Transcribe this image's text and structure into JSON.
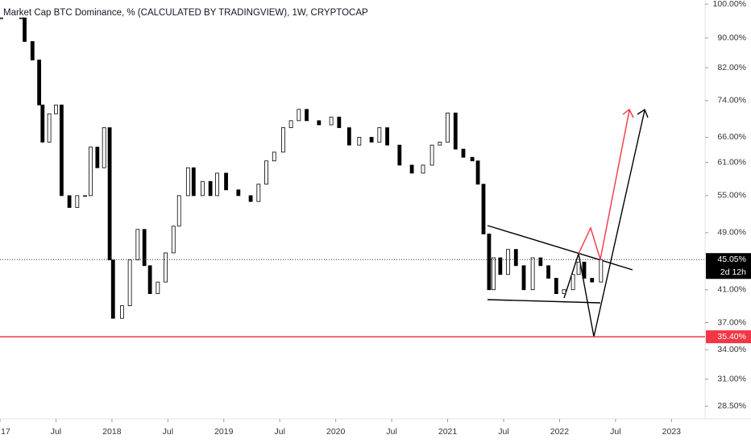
{
  "chart_data": {
    "type": "candlestick",
    "title": "Market Cap BTC Dominance, % (CALCULATED BY TRADINGVIEW), 1W, CRYPTOCAP",
    "log_scale": true,
    "grid": false,
    "up_color": "#ffffff",
    "down_color": "#000000",
    "x": [
      2017.01,
      2017.19,
      2017.22,
      2017.29,
      2017.35,
      2017.38,
      2017.44,
      2017.5,
      2017.55,
      2017.62,
      2017.69,
      2017.76,
      2017.81,
      2017.87,
      2017.93,
      2017.98,
      2018.01,
      2018.09,
      2018.16,
      2018.23,
      2018.29,
      2018.34,
      2018.41,
      2018.48,
      2018.55,
      2018.6,
      2018.68,
      2018.73,
      2018.81,
      2018.88,
      2018.94,
      2019.02,
      2019.13,
      2019.24,
      2019.31,
      2019.38,
      2019.45,
      2019.53,
      2019.6,
      2019.67,
      2019.74,
      2019.85,
      2019.96,
      2020.03,
      2020.12,
      2020.21,
      2020.32,
      2020.39,
      2020.46,
      2020.57,
      2020.68,
      2020.78,
      2020.86,
      2020.93,
      2021.0,
      2021.07,
      2021.14,
      2021.22,
      2021.27,
      2021.32,
      2021.37,
      2021.41,
      2021.47,
      2021.54,
      2021.61,
      2021.68,
      2021.76,
      2021.83,
      2021.9,
      2021.97,
      2022.04,
      2022.12,
      2022.17,
      2022.22,
      2022.29,
      2022.37
    ],
    "values": [
      95.8,
      95.8,
      89,
      84,
      73,
      65,
      71,
      73,
      55,
      53,
      55,
      55,
      64,
      60,
      68,
      45,
      37.5,
      39,
      45,
      49.5,
      44.2,
      40.5,
      42,
      46,
      50,
      55,
      60,
      55,
      57.5,
      55,
      59,
      56,
      55,
      54,
      57,
      61.3,
      63,
      68,
      69.5,
      72,
      69.5,
      68.6,
      70.3,
      68,
      64.4,
      66,
      65,
      68,
      64.4,
      60.5,
      59,
      60.5,
      64.4,
      65,
      71.2,
      63.6,
      62,
      61.3,
      57,
      48.8,
      41,
      45.3,
      43,
      46.5,
      44.2,
      41,
      45.3,
      44.2,
      42.5,
      40.5,
      41,
      43,
      44.7,
      42.5,
      42,
      45.05
    ],
    "xlim": [
      2017.0,
      2023.3
    ],
    "xticks": [
      {
        "value": 2017.0,
        "label": "17"
      },
      {
        "value": 2017.5,
        "label": "Jul"
      },
      2018,
      {
        "value": 2018.5,
        "label": "Jul"
      },
      2019,
      {
        "value": 2019.5,
        "label": "Jul"
      },
      2020,
      {
        "value": 2020.5,
        "label": "Jul"
      },
      2021,
      {
        "value": 2021.5,
        "label": "Jul"
      },
      2022,
      {
        "value": 2022.5,
        "label": "Jul"
      },
      2023
    ],
    "ylim": [
      27.4,
      101.3
    ],
    "yticks": [
      {
        "value": 100,
        "label": "100.00%"
      },
      {
        "value": 90,
        "label": "90.00%"
      },
      {
        "value": 82,
        "label": "82.00%"
      },
      {
        "value": 74,
        "label": "74.00%"
      },
      {
        "value": 66,
        "label": "66.00%"
      },
      {
        "value": 61,
        "label": "61.00%"
      },
      {
        "value": 55,
        "label": "55.00%"
      },
      {
        "value": 49,
        "label": "49.00%"
      },
      {
        "value": 41,
        "label": "41.00%"
      },
      {
        "value": 37,
        "label": "37.00%"
      },
      {
        "value": 34,
        "label": "34.00%"
      },
      {
        "value": 31,
        "label": "31.00%"
      },
      {
        "value": 28.5,
        "label": "28.50%"
      }
    ],
    "current_price": {
      "value": 45.05,
      "label": "45.05%",
      "countdown": "2d 12h"
    },
    "support_line": {
      "value": 35.4,
      "label": "35.40%",
      "color": "#f23645"
    }
  }
}
